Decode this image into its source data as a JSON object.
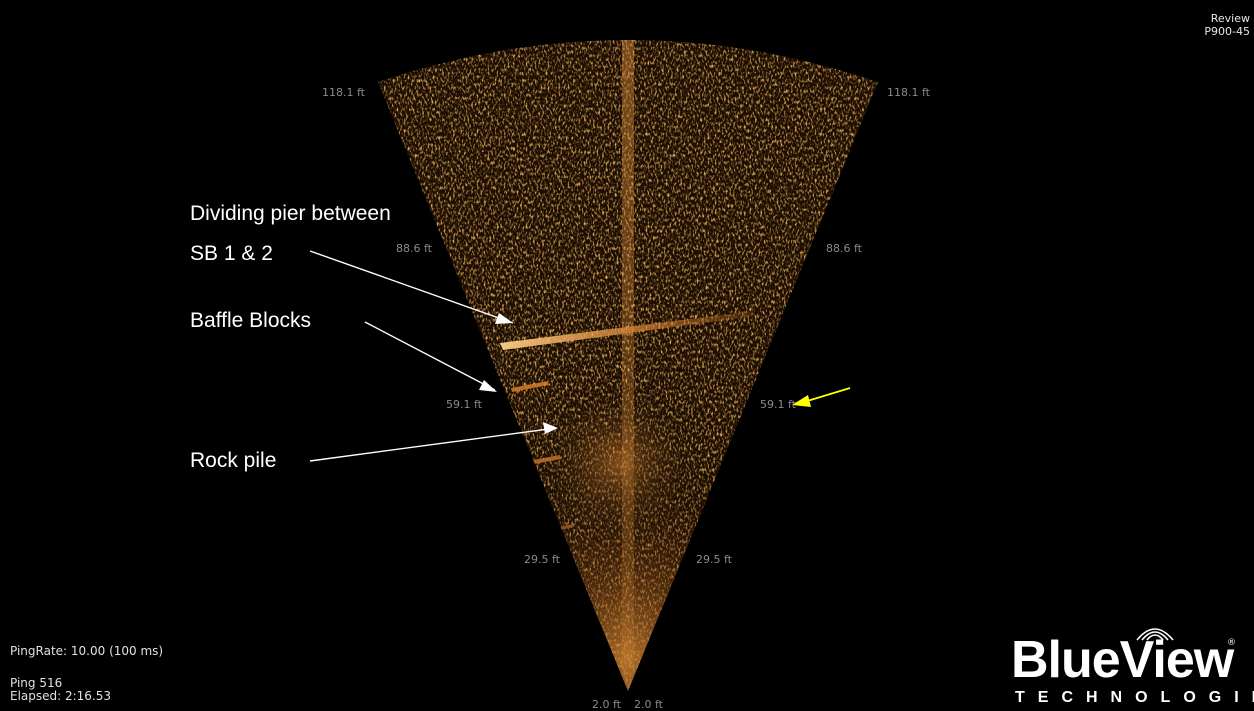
{
  "mode": {
    "label": "Review",
    "device": "P900-45"
  },
  "range_labels": {
    "r118_left": "118.1 ft",
    "r118_right": "118.1 ft",
    "r88_left": "88.6 ft",
    "r88_right": "88.6 ft",
    "r59_left": "59.1 ft",
    "r59_right": "59.1 ft",
    "r29_left": "29.5 ft",
    "r29_right": "29.5 ft",
    "r2_left": "2.0 ft",
    "r2_right": "2.0 ft"
  },
  "annotations": {
    "pier_line1": "Dividing pier between",
    "pier_line2": "SB 1 & 2",
    "baffle": "Baffle Blocks",
    "rock": "Rock pile"
  },
  "status": {
    "ping_rate": "PingRate: 10.00 (100 ms)",
    "ping": "Ping 516",
    "elapsed": "Elapsed: 2:16.53"
  },
  "logo": {
    "name": "BlueView",
    "tagline": "TECHNOLOGIES",
    "registered": "®"
  },
  "colors": {
    "background": "#000000",
    "sonar_bright": "#ffb04a",
    "sonar_mid": "#a8621c",
    "sonar_dark": "#2a1406",
    "range_text": "#8a8a8a",
    "annotation_text": "#ffffff",
    "highlight_arrow": "#ffff00"
  }
}
